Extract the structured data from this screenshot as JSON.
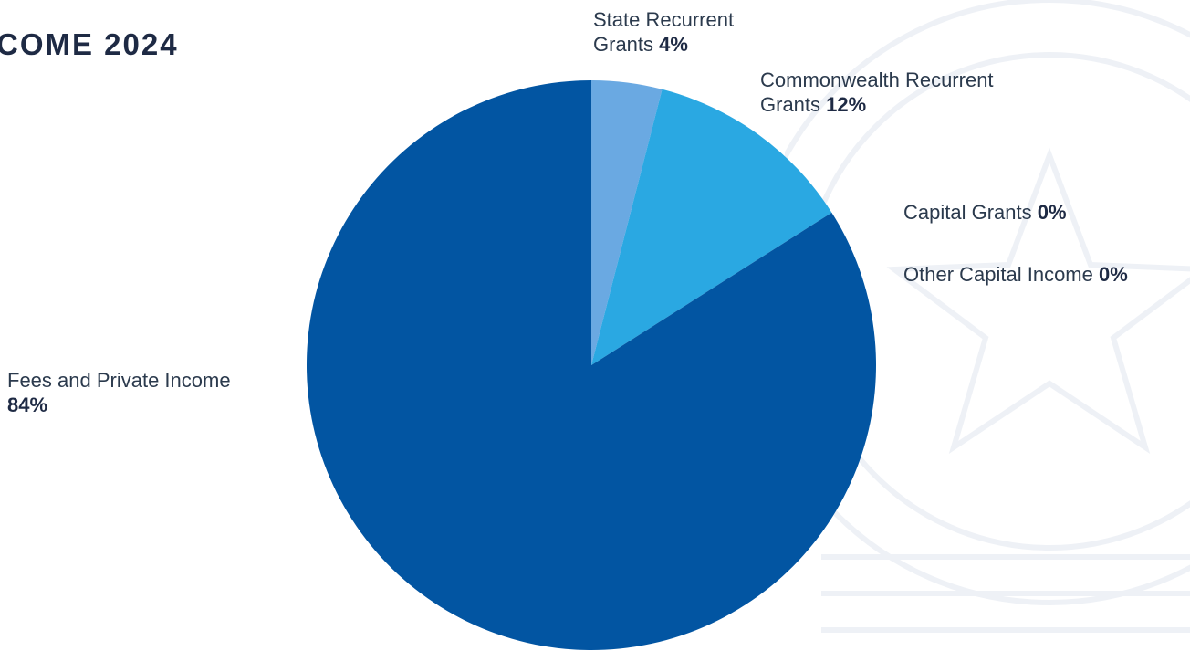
{
  "header": {
    "title": "COME 2024"
  },
  "chart_data": {
    "type": "pie",
    "title": "COME 2024",
    "slices": [
      {
        "name": "State Recurrent Grants",
        "value": 4,
        "label": "4%",
        "color": "#6aa9e2"
      },
      {
        "name": "Commonwealth Recurrent Grants",
        "value": 12,
        "label": "12%",
        "color": "#2aa8e2"
      },
      {
        "name": "Capital Grants",
        "value": 0,
        "label": "0%",
        "color": "#1d7fc4"
      },
      {
        "name": "Other Capital Income",
        "value": 0,
        "label": "0%",
        "color": "#1a6fb5"
      },
      {
        "name": "Fees and Private Income",
        "value": 84,
        "label": "84%",
        "color": "#0255a2"
      }
    ],
    "legend_placement": "labels beside slices"
  },
  "labels": {
    "state_line1": "State Recurrent",
    "state_line2": "Grants",
    "state_pct": "4%",
    "comm_line1": "Commonwealth Recurrent",
    "comm_line2": "Grants",
    "comm_pct": "12%",
    "capital_name": "Capital Grants",
    "capital_pct": "0%",
    "other_name": "Other Capital Income",
    "other_pct": "0%",
    "fees_name": "Fees and Private Income",
    "fees_pct": "84%"
  },
  "colors": {
    "watermark": "#eef1f6"
  }
}
